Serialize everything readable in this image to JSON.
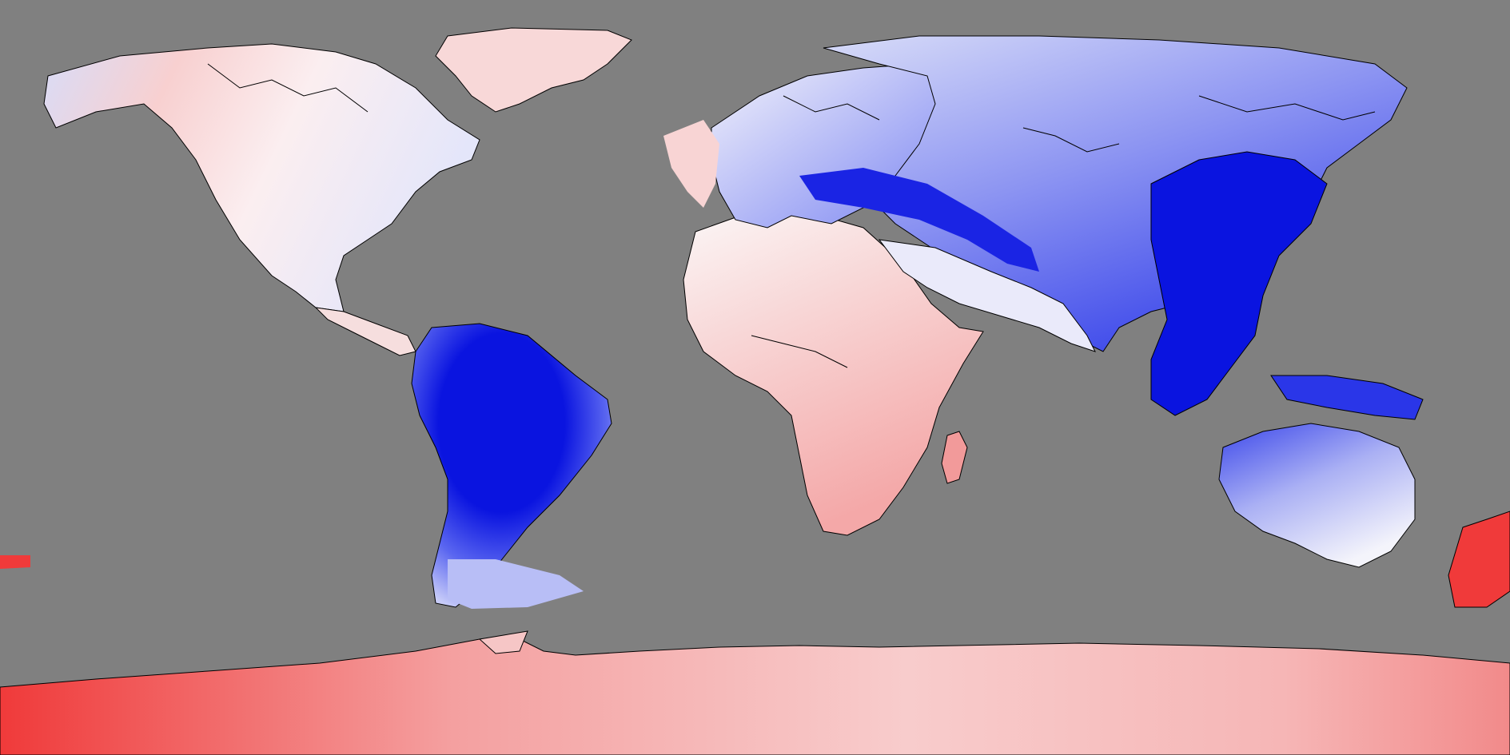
{
  "map": {
    "projection": "equirectangular",
    "ocean_color": "#808080",
    "coastline_color": "#000000",
    "scale": {
      "strong_negative": "#0a14e0",
      "negative": "#6e78f0",
      "weak_negative": "#c8ccf8",
      "neutral": "#fbf6f6",
      "weak_positive": "#f8c8c8",
      "positive": "#f29a9a",
      "strong_positive": "#f03a3a"
    },
    "regions": [
      {
        "name": "north-america",
        "anomaly": "weak_positive"
      },
      {
        "name": "greenland",
        "anomaly": "weak_positive"
      },
      {
        "name": "south-america",
        "anomaly": "strong_negative"
      },
      {
        "name": "africa",
        "anomaly": "weak_positive"
      },
      {
        "name": "europe",
        "anomaly": "weak_negative"
      },
      {
        "name": "asia",
        "anomaly": "negative"
      },
      {
        "name": "southeast-asia",
        "anomaly": "strong_negative"
      },
      {
        "name": "australia",
        "anomaly": "negative"
      },
      {
        "name": "new-zealand",
        "anomaly": "strong_positive"
      },
      {
        "name": "madagascar",
        "anomaly": "positive"
      },
      {
        "name": "antarctica",
        "anomaly": "positive"
      }
    ]
  }
}
